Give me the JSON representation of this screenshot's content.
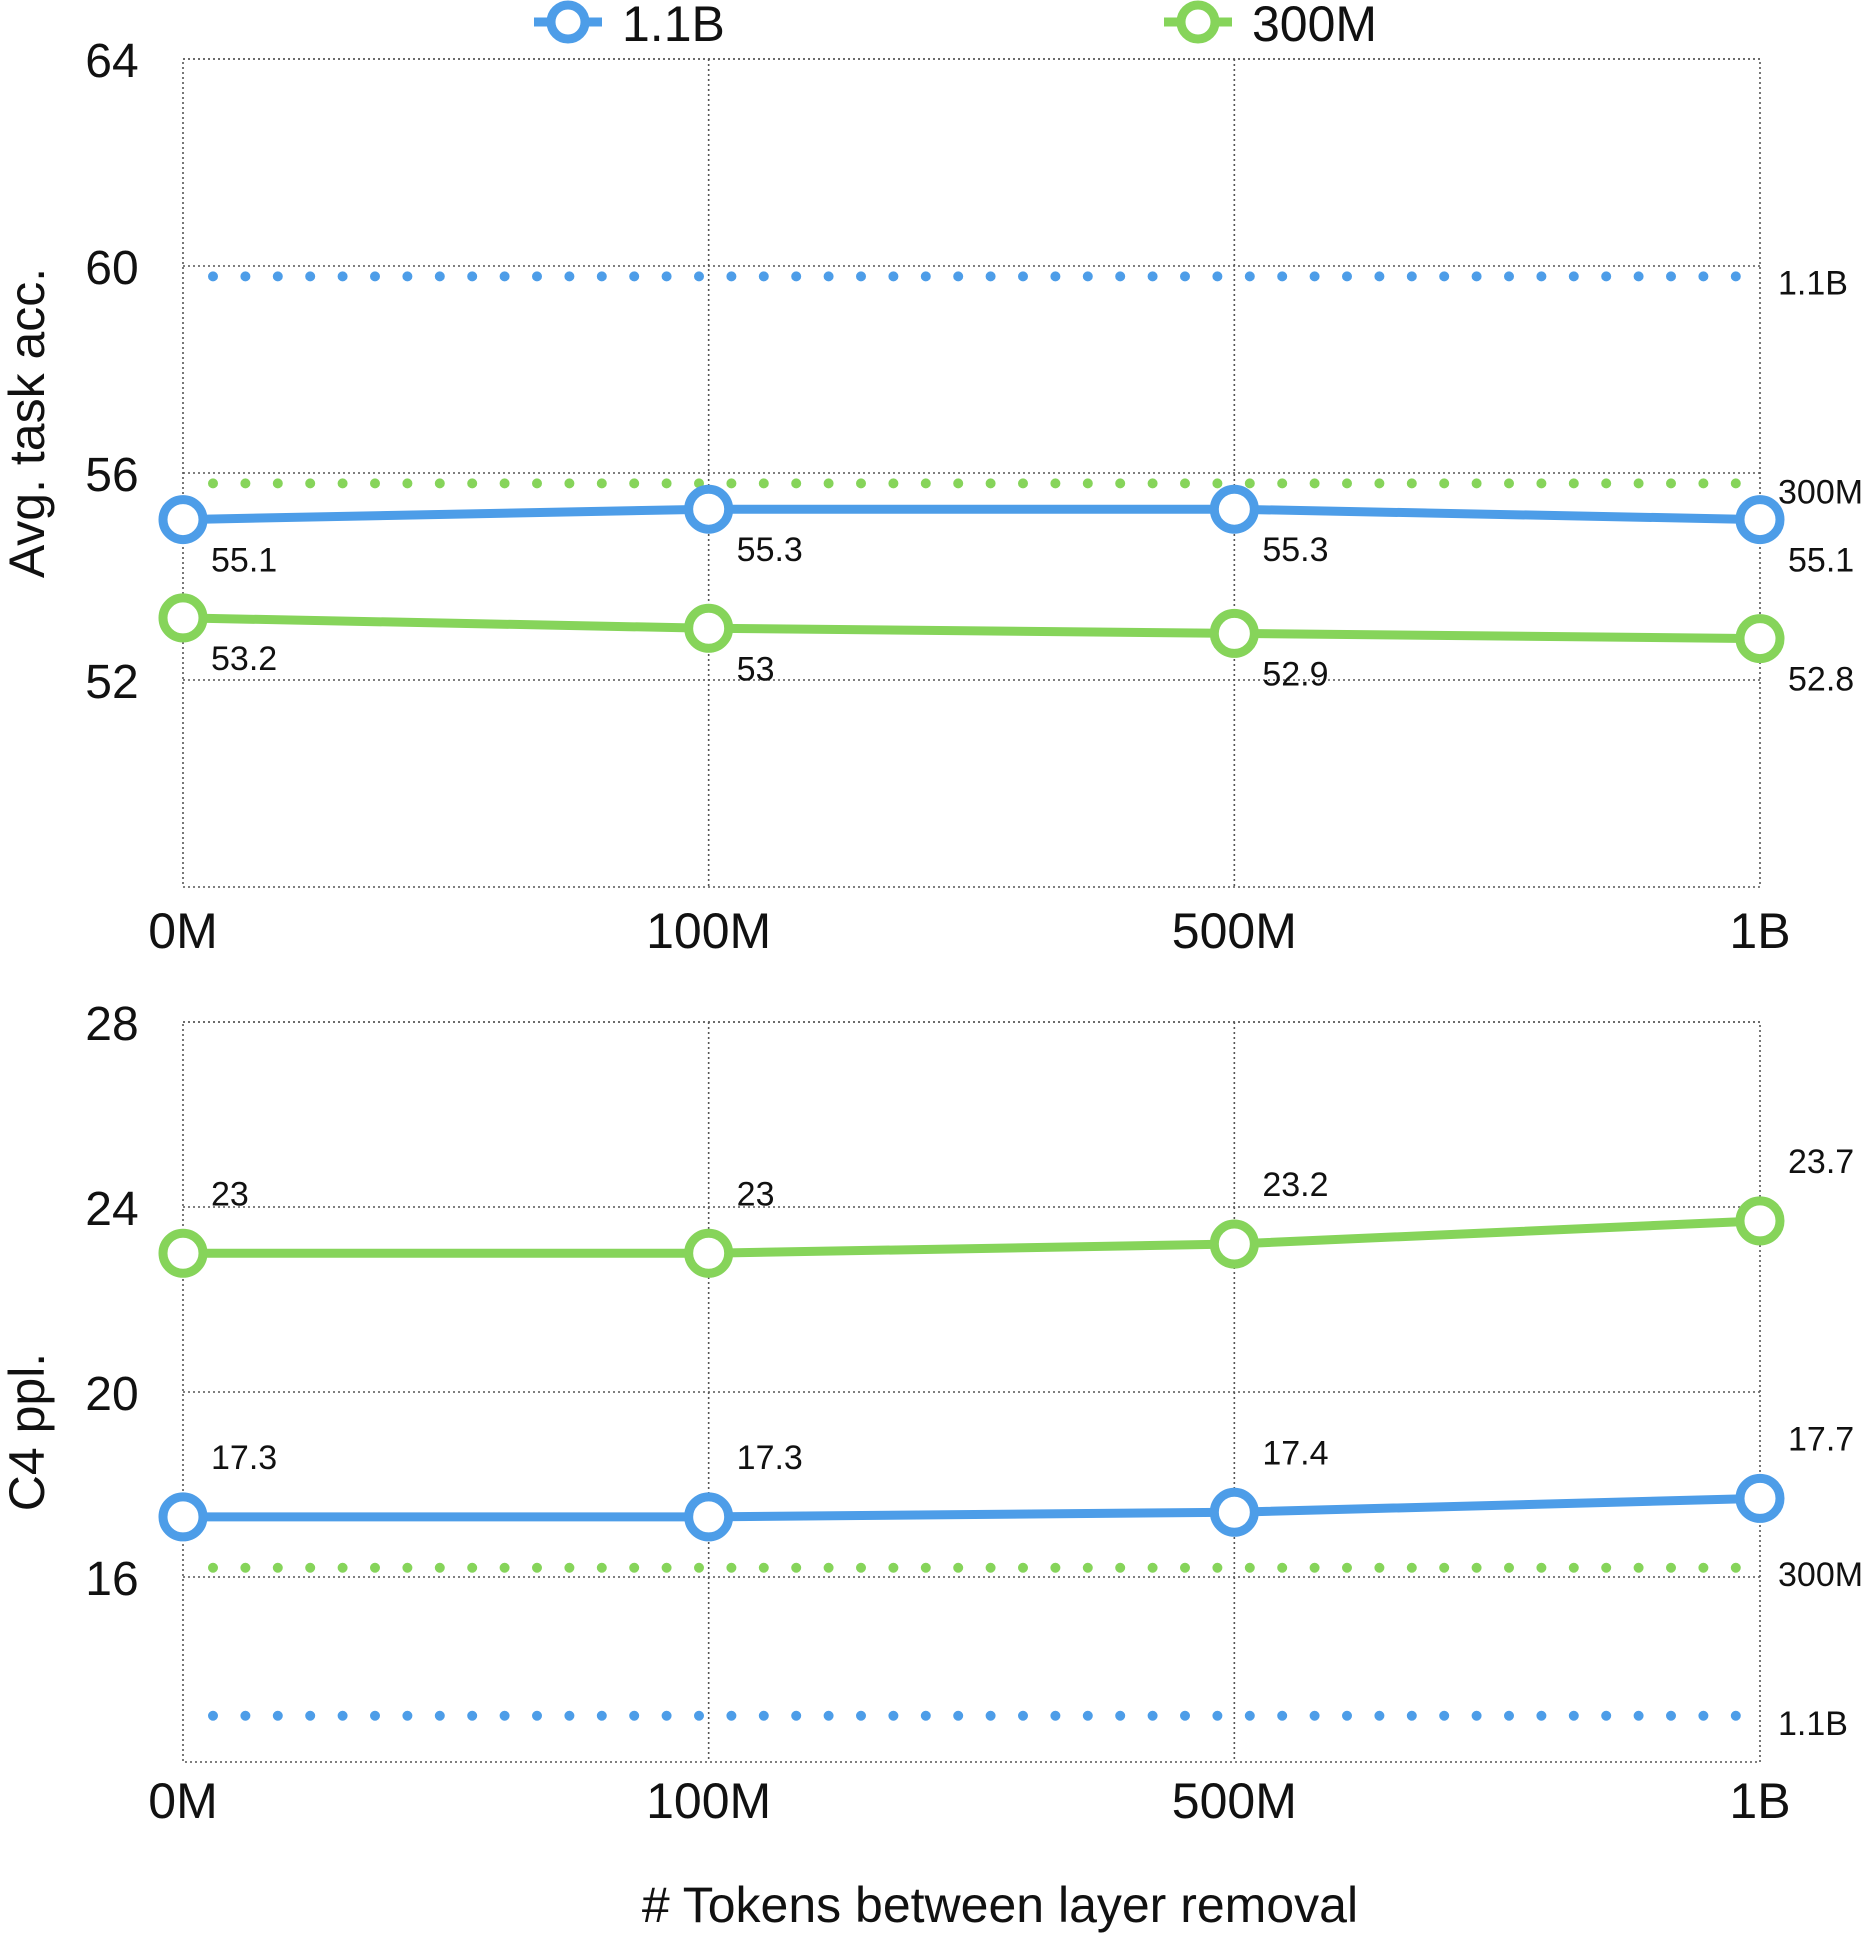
{
  "legend": {
    "placement": "top-center",
    "items": [
      {
        "name": "1.1B",
        "color": "#4d9de8"
      },
      {
        "name": "300M",
        "color": "#86d45a"
      }
    ]
  },
  "xlabel": "# Tokens between layer removal",
  "chart_data": [
    {
      "type": "line",
      "title": "",
      "ylabel": "Avg. task acc.",
      "categories": [
        "0M",
        "100M",
        "500M",
        "1B"
      ],
      "ylim": [
        48,
        64
      ],
      "yticks": [
        52,
        56,
        60,
        64
      ],
      "grid": true,
      "series": [
        {
          "name": "1.1B",
          "color": "#4d9de8",
          "values": [
            55.1,
            55.3,
            55.3,
            55.1
          ],
          "labels": [
            "55.1",
            "55.3",
            "55.3",
            "55.1"
          ]
        },
        {
          "name": "300M",
          "color": "#86d45a",
          "values": [
            53.2,
            53.0,
            52.9,
            52.8
          ],
          "labels": [
            "53.2",
            "53",
            "52.9",
            "52.8"
          ]
        }
      ],
      "reference_lines": [
        {
          "label": "1.1B",
          "value": 59.8,
          "color": "#4d9de8"
        },
        {
          "label": "300M",
          "value": 55.8,
          "color": "#86d45a"
        }
      ]
    },
    {
      "type": "line",
      "title": "",
      "ylabel": "C4 ppl.",
      "categories": [
        "0M",
        "100M",
        "500M",
        "1B"
      ],
      "ylim": [
        12,
        28
      ],
      "yticks": [
        16,
        20,
        24,
        28
      ],
      "grid": true,
      "series": [
        {
          "name": "300M",
          "color": "#86d45a",
          "values": [
            23.0,
            23.0,
            23.2,
            23.7
          ],
          "labels": [
            "23",
            "23",
            "23.2",
            "23.7"
          ]
        },
        {
          "name": "1.1B",
          "color": "#4d9de8",
          "values": [
            17.3,
            17.3,
            17.4,
            17.7
          ],
          "labels": [
            "17.3",
            "17.3",
            "17.4",
            "17.7"
          ]
        }
      ],
      "reference_lines": [
        {
          "label": "300M",
          "value": 16.2,
          "color": "#86d45a"
        },
        {
          "label": "1.1B",
          "value": 13.0,
          "color": "#4d9de8"
        }
      ]
    }
  ]
}
